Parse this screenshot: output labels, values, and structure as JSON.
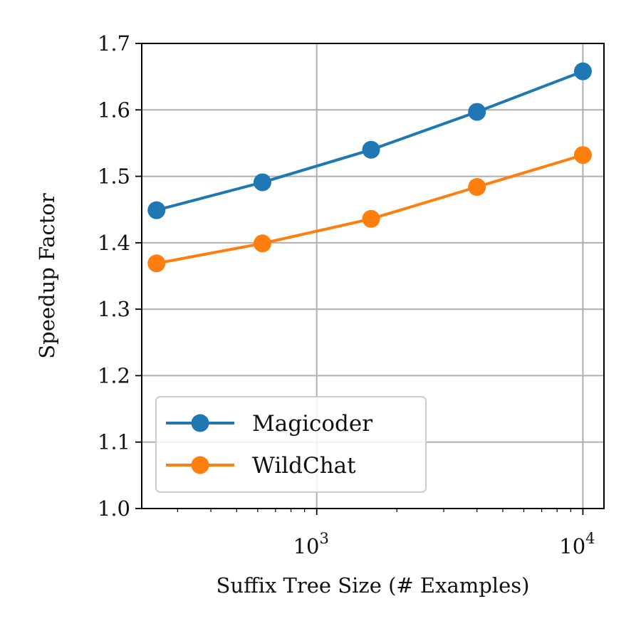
{
  "chart_data": {
    "type": "line",
    "xlabel": "Suffix Tree Size (# Examples)",
    "ylabel": "Speedup Factor",
    "xscale": "log",
    "xlim": [
      220,
      12000
    ],
    "ylim": [
      1.0,
      1.7
    ],
    "grid": true,
    "legend_position": "lower-left",
    "x": [
      250,
      625,
      1600,
      4000,
      10000
    ],
    "series": [
      {
        "name": "Magicoder",
        "color": "#1f77b4",
        "values": [
          1.449,
          1.491,
          1.54,
          1.597,
          1.658
        ]
      },
      {
        "name": "WildChat",
        "color": "#ff7f0e",
        "values": [
          1.369,
          1.399,
          1.436,
          1.484,
          1.532
        ]
      }
    ],
    "y_ticks": [
      "1.0",
      "1.1",
      "1.2",
      "1.3",
      "1.4",
      "1.5",
      "1.6",
      "1.7"
    ],
    "x_ticks": [
      {
        "value": 1000,
        "base": "10",
        "exp": "3"
      },
      {
        "value": 10000,
        "base": "10",
        "exp": "4"
      }
    ]
  }
}
